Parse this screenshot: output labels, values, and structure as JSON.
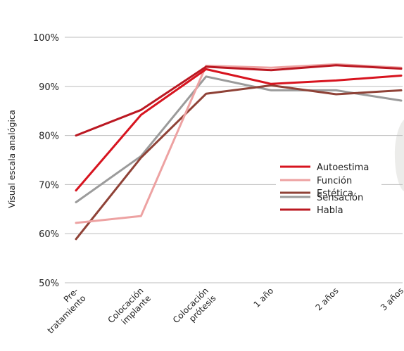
{
  "chart_data": {
    "type": "line",
    "title": "",
    "xlabel": "",
    "ylabel": "Visual escala analógica",
    "ylim": [
      50,
      100
    ],
    "yticks": [
      50,
      60,
      70,
      80,
      90,
      100
    ],
    "ytick_labels": [
      "50%",
      "60%",
      "70%",
      "80%",
      "90%",
      "100%"
    ],
    "grid": "horizontal",
    "legend_position": "right-center",
    "categories": [
      [
        "Pre-",
        "tratamiento"
      ],
      [
        "Colocación",
        "implante"
      ],
      [
        "Colocación",
        "prótesis"
      ],
      [
        "1 año"
      ],
      [
        "2 años"
      ],
      [
        "3 años"
      ]
    ],
    "series": [
      {
        "name": "Autoestima",
        "color": "#d7141f",
        "values": [
          68.8,
          84.2,
          93.5,
          90.5,
          91.2,
          92.2
        ]
      },
      {
        "name": "Función",
        "color": "#eda2a2",
        "values": [
          62.2,
          63.6,
          94.2,
          93.8,
          94.5,
          93.8
        ]
      },
      {
        "name": "Estética",
        "color": "#8f4237",
        "values": [
          58.9,
          75.5,
          88.5,
          90.2,
          88.4,
          89.2
        ]
      },
      {
        "name": "Sensación",
        "color": "#9b9b9b",
        "values": [
          66.4,
          75.8,
          92.0,
          89.2,
          89.2,
          87.1
        ]
      },
      {
        "name": "Habla",
        "color": "#bb1822",
        "values": [
          80.0,
          85.2,
          94.0,
          93.3,
          94.3,
          93.6
        ]
      }
    ]
  }
}
